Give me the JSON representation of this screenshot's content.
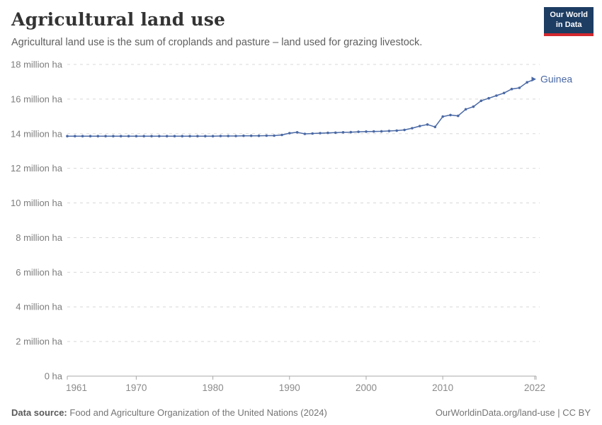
{
  "header": {
    "title": "Agricultural land use",
    "subtitle": "Agricultural land use is the sum of croplands and pasture – land used for grazing livestock."
  },
  "logo": {
    "line1": "Our World",
    "line2": "in Data",
    "bg_color": "#1d3d63",
    "accent_color": "#d2282e"
  },
  "chart_data": {
    "type": "line",
    "title": "Agricultural land use",
    "entity": "Guinea",
    "values_unit": "million ha",
    "ylabel": "",
    "xlabel": "",
    "ylim_million_ha": [
      0,
      18
    ],
    "grid": "horizontal dashed",
    "legend_position": "end-of-line label",
    "x": [
      1961,
      1962,
      1963,
      1964,
      1965,
      1966,
      1967,
      1968,
      1969,
      1970,
      1971,
      1972,
      1973,
      1974,
      1975,
      1976,
      1977,
      1978,
      1979,
      1980,
      1981,
      1982,
      1983,
      1984,
      1985,
      1986,
      1987,
      1988,
      1989,
      1990,
      1991,
      1992,
      1993,
      1994,
      1995,
      1996,
      1997,
      1998,
      1999,
      2000,
      2001,
      2002,
      2003,
      2004,
      2005,
      2006,
      2007,
      2008,
      2009,
      2010,
      2011,
      2012,
      2013,
      2014,
      2015,
      2016,
      2017,
      2018,
      2019,
      2020,
      2021,
      2022
    ],
    "series": [
      {
        "name": "Guinea",
        "color": "#4a69a5",
        "values": [
          13.86,
          13.86,
          13.86,
          13.86,
          13.86,
          13.86,
          13.86,
          13.86,
          13.86,
          13.86,
          13.86,
          13.86,
          13.86,
          13.86,
          13.86,
          13.86,
          13.86,
          13.86,
          13.86,
          13.86,
          13.87,
          13.87,
          13.87,
          13.88,
          13.88,
          13.88,
          13.89,
          13.89,
          13.93,
          14.03,
          14.08,
          13.99,
          14.01,
          14.03,
          14.05,
          14.06,
          14.08,
          14.09,
          14.11,
          14.12,
          14.13,
          14.14,
          14.16,
          14.18,
          14.22,
          14.32,
          14.44,
          14.53,
          14.39,
          14.99,
          15.08,
          15.03,
          15.41,
          15.56,
          15.9,
          16.05,
          16.2,
          16.35,
          16.58,
          16.65,
          16.97,
          17.15
        ]
      }
    ],
    "ytick_values": [
      0,
      2,
      4,
      6,
      8,
      10,
      12,
      14,
      16,
      18
    ],
    "ytick_labels": [
      "0 ha",
      "2 million ha",
      "4 million ha",
      "6 million ha",
      "8 million ha",
      "10 million ha",
      "12 million ha",
      "14 million ha",
      "16 million ha",
      "18 million ha"
    ],
    "xticks": [
      1961,
      1970,
      1980,
      1990,
      2000,
      2010,
      2022
    ]
  },
  "footer": {
    "datasource_label": "Data source:",
    "datasource_value": "Food and Agriculture Organization of the United Nations (2024)",
    "link": "OurWorldinData.org/land-use",
    "separator": " | ",
    "license": "CC BY"
  },
  "colors": {
    "line": "#4a69a5",
    "gridline": "#d8d8d8",
    "axis_line": "#a8a8a8",
    "title_text": "#333333",
    "subtitle_text": "#5f5f5f",
    "tick_text": "#8a8a8a"
  }
}
